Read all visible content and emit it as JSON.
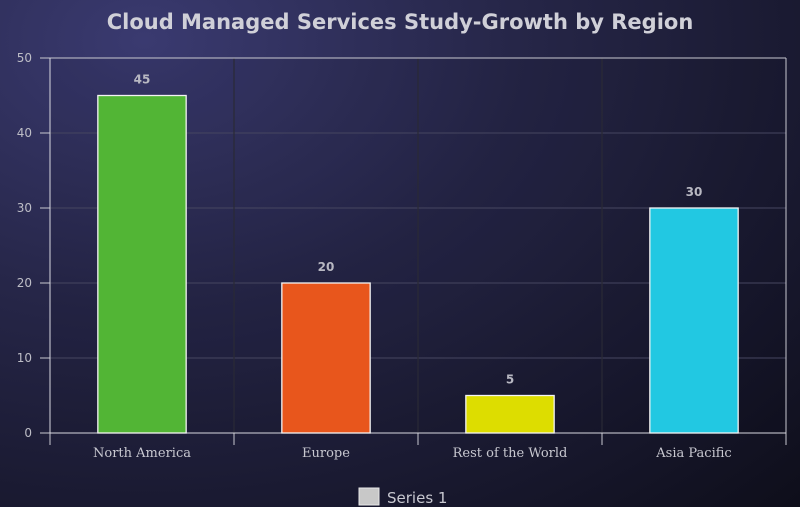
{
  "chart_data": {
    "type": "bar",
    "title": "Cloud Managed Services Study-Growth by Region",
    "categories": [
      "North America",
      "Europe",
      "Rest of the World",
      "Asia Pacific"
    ],
    "series": [
      {
        "name": "Series 1",
        "values": [
          45,
          20,
          5,
          30
        ],
        "colors": [
          "#52b535",
          "#e8561c",
          "#dddd00",
          "#22c8e2"
        ],
        "legend_color": "#c8c8c8"
      }
    ],
    "data_labels": [
      "45",
      "20",
      "5",
      "30"
    ],
    "ylim": [
      0,
      50
    ],
    "yticks": [
      "0",
      "10",
      "20",
      "30",
      "40",
      "50"
    ],
    "xlabel": "",
    "ylabel": "",
    "grid": true,
    "legend": "bottom-center"
  }
}
